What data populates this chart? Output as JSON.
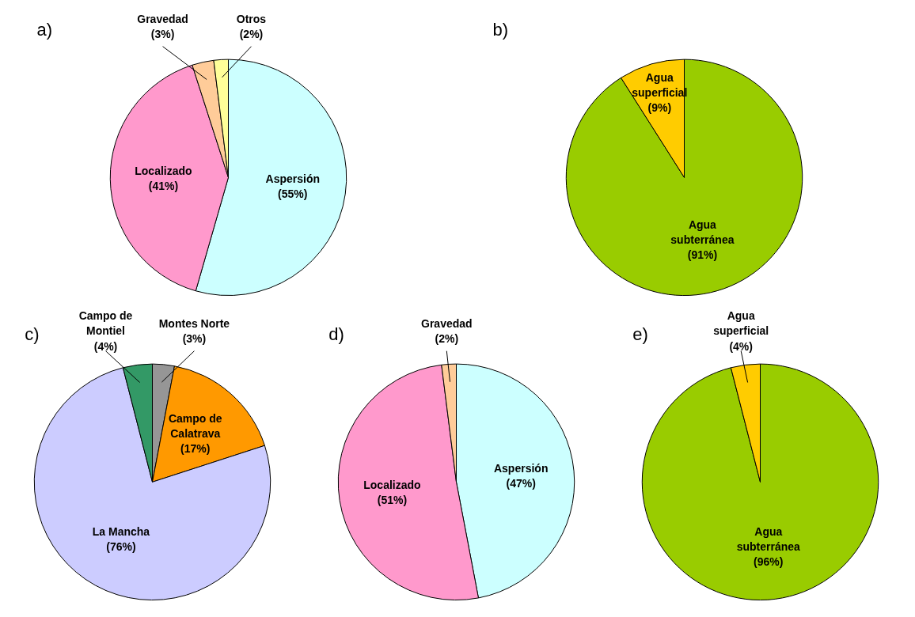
{
  "chart_data": [
    {
      "type": "pie",
      "title": "a)",
      "categories": [
        "Aspersión",
        "Localizado",
        "Gravedad",
        "Otros"
      ],
      "values": [
        55,
        41,
        3,
        2
      ],
      "colors": [
        "#ccffff",
        "#ff99cc",
        "#ffcc99",
        "#ffff99"
      ],
      "value_labels": [
        "(55%)",
        "(41%)",
        "(3%)",
        "(2%)"
      ]
    },
    {
      "type": "pie",
      "title": "b)",
      "categories": [
        "Agua subterránea",
        "Agua superficial"
      ],
      "values": [
        91,
        9
      ],
      "colors": [
        "#99cc00",
        "#ffcc00"
      ],
      "value_labels": [
        "(91%)",
        "(9%)"
      ]
    },
    {
      "type": "pie",
      "title": "c)",
      "categories": [
        "Montes Norte",
        "Campo de Calatrava",
        "La Mancha",
        "Campo de Montiel"
      ],
      "values": [
        3,
        17,
        76,
        4
      ],
      "colors": [
        "#969696",
        "#ff9900",
        "#ccccff",
        "#339966"
      ],
      "value_labels": [
        "(3%)",
        "(17%)",
        "(76%)",
        "(4%)"
      ]
    },
    {
      "type": "pie",
      "title": "d)",
      "categories": [
        "Aspersión",
        "Localizado",
        "Gravedad"
      ],
      "values": [
        47,
        51,
        2
      ],
      "colors": [
        "#ccffff",
        "#ff99cc",
        "#ffcc99"
      ],
      "value_labels": [
        "(47%)",
        "(51%)",
        "(2%)"
      ]
    },
    {
      "type": "pie",
      "title": "e)",
      "categories": [
        "Agua subterránea",
        "Agua superficial"
      ],
      "values": [
        96,
        4
      ],
      "colors": [
        "#99cc00",
        "#ffcc00"
      ],
      "value_labels": [
        "(96%)",
        "(4%)"
      ]
    }
  ]
}
